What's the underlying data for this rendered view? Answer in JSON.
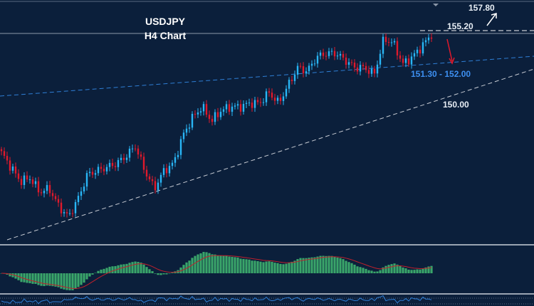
{
  "chart_data": {
    "type": "candlestick",
    "title": "USDJPY",
    "subtitle": "H4 Chart",
    "annotations": {
      "target_up": "157.80",
      "resistance": "155.20",
      "support_zone": "151.30 - 152.00",
      "trendline_support": "150.00"
    },
    "price_path": [
      142.17,
      140.65,
      139.14,
      139.52,
      138.0,
      138.38,
      136.49,
      135.35,
      137.25,
      139.9,
      140.28,
      140.65,
      141.03,
      141.79,
      142.93,
      140.28,
      138.38,
      140.28,
      141.03,
      144.06,
      145.96,
      147.09,
      145.58,
      146.72,
      147.09,
      147.09,
      147.47,
      147.47,
      148.61,
      147.47,
      149.37,
      151.26,
      150.88,
      152.4,
      152.78,
      152.78,
      152.02,
      151.26,
      151.26,
      150.5,
      154.29,
      153.91,
      151.64,
      152.4,
      153.53,
      154.82
    ],
    "indicators": [
      "MACD histogram with signal line",
      "oscillator line"
    ],
    "colors": {
      "background": "#0b1f3b",
      "bull_candle": "#29b6f6",
      "bear_candle": "#e0192b",
      "support_line": "#2f7fd6",
      "trendline": "#c8ccd4",
      "histogram": "#3aa56a",
      "signal": "#c0202c",
      "oscillator": "#2f7fd6",
      "zone_label": "#3d8ff0"
    },
    "grid": false,
    "legend": "none"
  }
}
